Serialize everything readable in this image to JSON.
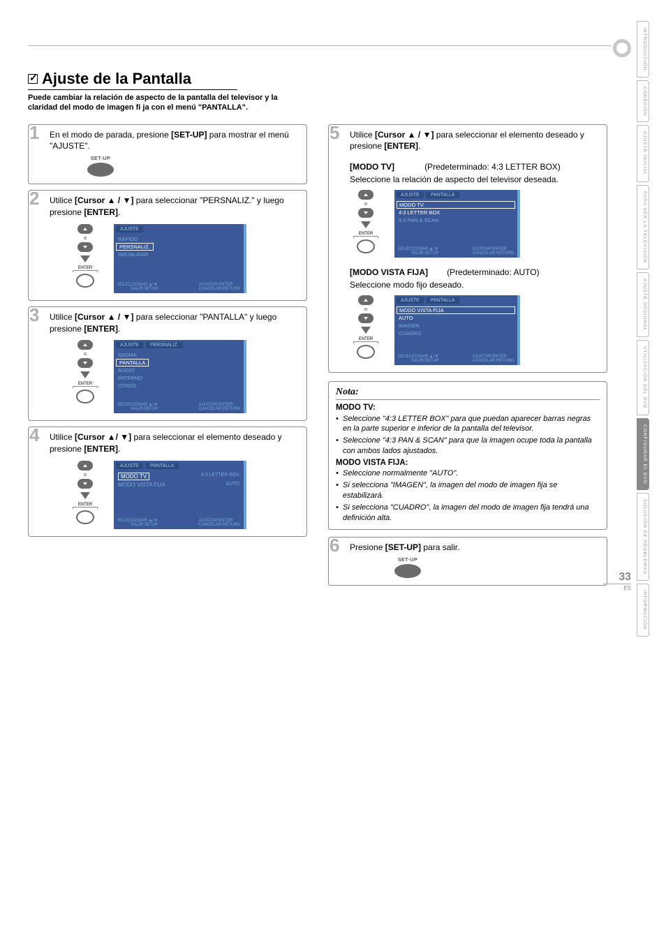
{
  "page": {
    "number": "33",
    "lang_code": "ES"
  },
  "title": "Ajuste de la Pantalla",
  "subtitle": "Puede cambiar la relación de aspecto de la pantalla del televisor y la claridad del modo de imagen fi ja con el menú \"PANTALLA\".",
  "side_tabs": [
    {
      "label": "INTRODUCCIÓN",
      "active": false
    },
    {
      "label": "CONEXIÓN",
      "active": false
    },
    {
      "label": "AJUSTE INICIAL",
      "active": false
    },
    {
      "label": "PARA VER LA TELEVISIÓN",
      "active": false
    },
    {
      "label": "AJUSTE OPCIONAL",
      "active": false
    },
    {
      "label": "UTILIZACIÓN DEL DVD",
      "active": false
    },
    {
      "label": "CONFIGURAR EL DVD",
      "active": true
    },
    {
      "label": "SOLUCIÓN DE PROBLEMAS",
      "active": false
    },
    {
      "label": "INFORMACIÓN",
      "active": false
    }
  ],
  "setup_label": "SET-UP",
  "enter_label": "ENTER",
  "steps": {
    "s1": {
      "num": "1",
      "text_pre": "En el modo de parada, presione ",
      "text_bold": "[SET-UP]",
      "text_post": " para mostrar el menú \"AJUSTE\"."
    },
    "s2": {
      "num": "2",
      "text_pre": "Utilice ",
      "text_bold": "[Cursor ▲ / ▼]",
      "text_mid": " para seleccionar \"PERSNALIZ.\" y luego presione ",
      "text_bold2": "[ENTER]",
      "menu": {
        "tab1": "AJUSTE",
        "items": [
          "RÁPIDO",
          "PERSNALIZ.",
          "INICIALIZAR"
        ],
        "selected": 1,
        "foot_left": "SELECCIONAR:▲/▼\nSALIR:SETUP",
        "foot_right": "AJUSTAR:ENTER\nCANCELAR:RETURN"
      }
    },
    "s3": {
      "num": "3",
      "text_pre": "Utilice ",
      "text_bold": "[Cursor ▲ / ▼]",
      "text_mid": " para seleccionar \"PANTALLA\" y luego presione ",
      "text_bold2": "[ENTER]",
      "menu": {
        "tab1": "AJUSTE",
        "tab2": "PERSNALIZ.",
        "items": [
          "IDIOMA",
          "PANTALLA",
          "AUDIO",
          "PATERNO",
          "OTROS"
        ],
        "selected": 1,
        "foot_left": "SELECCIONAR:▲/▼\nSALIR:SETUP",
        "foot_right": "AJUSTAR:ENTER\nCANCELAR:RETURN"
      }
    },
    "s4": {
      "num": "4",
      "text_pre": "Utilice ",
      "text_bold": "[Cursor ▲/ ▼]",
      "text_mid": " para seleccionar el elemento deseado y presione ",
      "text_bold2": "[ENTER]",
      "menu": {
        "tab1": "AJUSTE",
        "tab2": "PANTALLA",
        "rows": [
          {
            "label": "MODO TV",
            "val": "4:3 LETTER BOX",
            "selected": true
          },
          {
            "label": "MODO VISTA FIJA",
            "val": "AUTO",
            "selected": false
          }
        ],
        "foot_left": "SELECCIONAR:▲/▼\nSALIR:SETUP",
        "foot_right": "AJUSTAR:ENTER\nCANCELAR:RETURN"
      }
    },
    "s5": {
      "num": "5",
      "text_pre": "Utilice ",
      "text_bold": "[Cursor ▲ / ▼]",
      "text_mid": " para seleccionar el elemento deseado y presione ",
      "text_bold2": "[ENTER]",
      "sub1": {
        "label": "[MODO TV]",
        "default": "(Predeterminado: 4:3 LETTER BOX)",
        "desc": "Seleccione la relación de aspecto del televisor deseada.",
        "menu": {
          "tab1": "AJUSTE",
          "tab2": "PANTALLA",
          "header": "MODO TV",
          "items": [
            "4:3 LETTER BOX",
            "4:3 PAN & SCAN"
          ],
          "selected": 0,
          "foot_left": "SELECCIONAR:▲/▼\nSALIR:SETUP",
          "foot_right": "AJUSTAR:ENTER\nCANCELAR:RETURN"
        }
      },
      "sub2": {
        "label": "[MODO VISTA FIJA]",
        "default": "(Predeterminado: AUTO)",
        "desc": "Seleccione modo fijo deseado.",
        "menu": {
          "tab1": "AJUSTE",
          "tab2": "PANTALLA",
          "header": "MODO VISTA FIJA",
          "items": [
            "AUTO",
            "IMAGEN",
            "CUADRO"
          ],
          "selected": 0,
          "foot_left": "SELECCIONAR:▲/▼\nSALIR:SETUP",
          "foot_right": "AJUSTAR:ENTER\nCANCELAR:RETURN"
        }
      }
    },
    "s6": {
      "num": "6",
      "text_pre": "Presione ",
      "text_bold": "[SET-UP]",
      "text_post": " para salir."
    }
  },
  "nota": {
    "title": "Nota:",
    "section1_title": "MODO TV:",
    "section1_items": [
      "Seleccione \"4:3 LETTER BOX\" para que puedan aparecer barras negras en la parte superior e inferior de la pantalla del televisor.",
      "Seleccione \"4:3 PAN & SCAN\" para que la imagen ocupe toda la pantalla con ambos lados ajustados."
    ],
    "section2_title": "MODO VISTA FIJA:",
    "section2_items": [
      "Seleccione normalmente \"AUTO\".",
      "Si selecciona \"IMAGEN\", la imagen del modo de imagen fija se estabilizará.",
      "Si selecciona \"CUADRO\", la imagen del modo de imagen fija tendrá una definición alta."
    ]
  },
  "colors": {
    "menu_bg": "#3b5998",
    "menu_border": "#6aa5d8",
    "menu_dim": "#7aa8d8",
    "step_num": "#b0b0b0",
    "button": "#6a6a6a"
  }
}
